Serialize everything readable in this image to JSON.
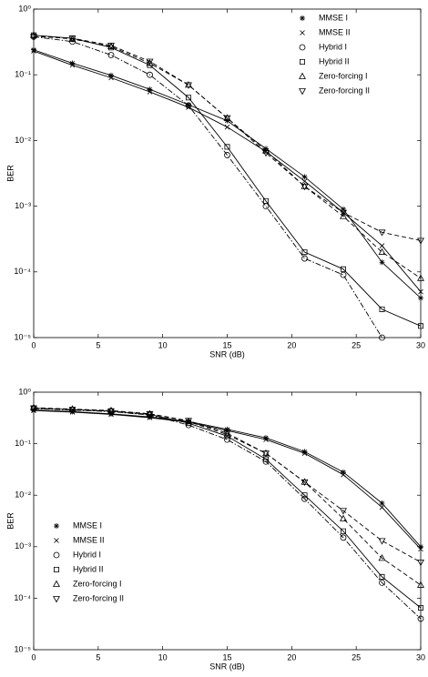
{
  "chart_data": [
    {
      "type": "line",
      "xlabel": "SNR (dB)",
      "ylabel": "BER",
      "log_y": true,
      "grid": false,
      "legend": "upper right",
      "x": [
        0,
        3,
        6,
        9,
        12,
        15,
        18,
        21,
        24,
        27,
        30
      ],
      "xlim": [
        0,
        30
      ],
      "xticks": [
        0,
        5,
        10,
        15,
        20,
        25,
        30
      ],
      "ylim": [
        1e-05,
        1
      ],
      "yticks": [
        {
          "value": 1e-05,
          "label": "10⁻⁵"
        },
        {
          "value": 0.0001,
          "label": "10⁻⁴"
        },
        {
          "value": 0.001,
          "label": "10⁻³"
        },
        {
          "value": 0.01,
          "label": "10⁻²"
        },
        {
          "value": 0.1,
          "label": "10⁻¹"
        },
        {
          "value": 1,
          "label": "10⁰"
        }
      ],
      "series": [
        {
          "name": "MMSE I",
          "color": "#000000",
          "marker": "asterisk",
          "linestyle": "solid",
          "values": [
            0.24,
            0.15,
            0.098,
            0.06,
            0.035,
            0.02,
            0.0075,
            0.0028,
            0.0009,
            0.00014,
            4e-05
          ]
        },
        {
          "name": "MMSE II",
          "color": "#000000",
          "marker": "x",
          "linestyle": "solid",
          "values": [
            0.23,
            0.14,
            0.09,
            0.055,
            0.032,
            0.016,
            0.0068,
            0.0024,
            0.0008,
            0.00025,
            5e-05
          ]
        },
        {
          "name": "Hybrid I",
          "color": "#000000",
          "marker": "circle",
          "linestyle": "dashdot",
          "values": [
            0.38,
            0.32,
            0.2,
            0.1,
            0.034,
            0.006,
            0.001,
            0.00016,
            9e-05,
            1e-05,
            null
          ]
        },
        {
          "name": "Hybrid II",
          "color": "#000000",
          "marker": "square",
          "linestyle": "solid",
          "values": [
            0.4,
            0.36,
            0.26,
            0.14,
            0.045,
            0.008,
            0.0012,
            0.0002,
            0.00011,
            2.7e-05,
            1.5e-05
          ]
        },
        {
          "name": "Zero-forcing I",
          "color": "#000000",
          "marker": "triangle-up",
          "linestyle": "dashed",
          "values": [
            0.4,
            0.35,
            0.27,
            0.15,
            0.07,
            0.022,
            0.007,
            0.002,
            0.0007,
            0.0002,
            8e-05
          ]
        },
        {
          "name": "Zero-forcing II",
          "color": "#000000",
          "marker": "triangle-down",
          "linestyle": "dashed",
          "values": [
            0.38,
            0.36,
            0.28,
            0.16,
            0.07,
            0.022,
            0.0065,
            0.002,
            0.0008,
            0.0004,
            0.0003
          ]
        }
      ]
    },
    {
      "type": "line",
      "xlabel": "SNR (dB)",
      "ylabel": "BER",
      "log_y": true,
      "grid": false,
      "legend": "lower left",
      "x": [
        0,
        3,
        6,
        9,
        12,
        15,
        18,
        21,
        24,
        27,
        30
      ],
      "xlim": [
        0,
        30
      ],
      "xticks": [
        0,
        5,
        10,
        15,
        20,
        25,
        30
      ],
      "ylim": [
        1e-05,
        1
      ],
      "yticks": [
        {
          "value": 1e-05,
          "label": "10⁻⁵"
        },
        {
          "value": 0.0001,
          "label": "10⁻⁴"
        },
        {
          "value": 0.001,
          "label": "10⁻³"
        },
        {
          "value": 0.01,
          "label": "10⁻²"
        },
        {
          "value": 0.1,
          "label": "10⁻¹"
        },
        {
          "value": 1,
          "label": "10⁰"
        }
      ],
      "series": [
        {
          "name": "MMSE I",
          "color": "#000000",
          "marker": "asterisk",
          "linestyle": "solid",
          "values": [
            0.45,
            0.42,
            0.38,
            0.33,
            0.27,
            0.19,
            0.13,
            0.07,
            0.028,
            0.007,
            0.001
          ]
        },
        {
          "name": "MMSE II",
          "color": "#000000",
          "marker": "x",
          "linestyle": "solid",
          "values": [
            0.44,
            0.41,
            0.37,
            0.32,
            0.26,
            0.18,
            0.12,
            0.065,
            0.025,
            0.0058,
            0.0009
          ]
        },
        {
          "name": "Hybrid I",
          "color": "#000000",
          "marker": "circle",
          "linestyle": "dashdot",
          "values": [
            0.48,
            0.45,
            0.42,
            0.36,
            0.23,
            0.12,
            0.045,
            0.0085,
            0.0015,
            0.0002,
            4e-05
          ]
        },
        {
          "name": "Hybrid II",
          "color": "#000000",
          "marker": "square",
          "linestyle": "solid",
          "values": [
            0.49,
            0.46,
            0.43,
            0.37,
            0.25,
            0.14,
            0.05,
            0.01,
            0.002,
            0.00026,
            6.5e-05
          ]
        },
        {
          "name": "Zero-forcing I",
          "color": "#000000",
          "marker": "triangle-up",
          "linestyle": "dashed",
          "values": [
            0.5,
            0.47,
            0.44,
            0.38,
            0.27,
            0.15,
            0.065,
            0.018,
            0.0035,
            0.0006,
            0.00018
          ]
        },
        {
          "name": "Zero-forcing II",
          "color": "#000000",
          "marker": "triangle-down",
          "linestyle": "dashed",
          "values": [
            0.49,
            0.46,
            0.43,
            0.38,
            0.28,
            0.16,
            0.065,
            0.018,
            0.005,
            0.0013,
            0.0005
          ]
        }
      ]
    }
  ]
}
